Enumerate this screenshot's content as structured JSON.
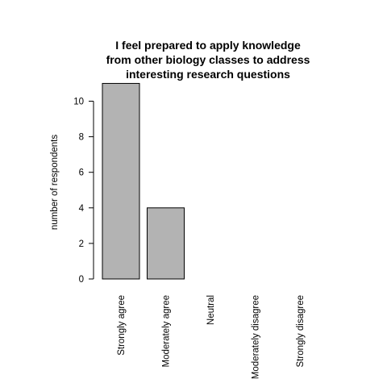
{
  "chart_data": {
    "type": "bar",
    "title_lines": [
      "I feel prepared to apply knowledge",
      "from other biology classes to address",
      "interesting research questions"
    ],
    "xlabel": "",
    "ylabel": "number of respondents",
    "categories": [
      "Strongly agree",
      "Moderately agree",
      "Neutral",
      "Moderately disagree",
      "Strongly disagree"
    ],
    "values": [
      11,
      4,
      0,
      0,
      0
    ],
    "ylim": [
      0,
      11
    ],
    "yticks": [
      0,
      2,
      4,
      6,
      8,
      10
    ],
    "bar_color": "#b3b3b3",
    "bar_border_color": "#000000",
    "grid": false,
    "legend": false
  }
}
